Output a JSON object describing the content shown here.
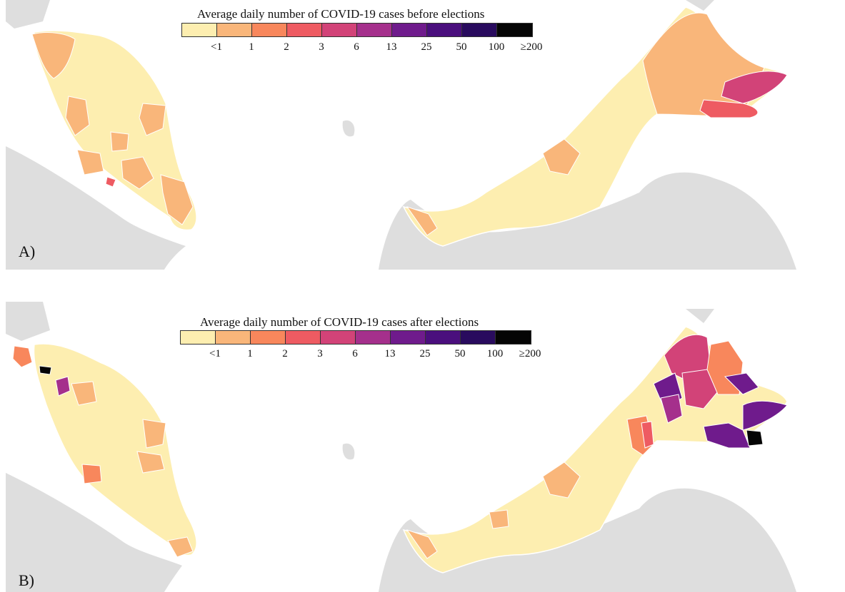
{
  "palette": {
    "lt1": "#fdeeb0",
    "1": "#f9b67a",
    "2": "#f8875c",
    "3": "#ee5b62",
    "6": "#d24378",
    "13": "#a5308c",
    "25": "#6f1b8c",
    "50": "#4a0f7d",
    "100": "#290b5e",
    "ge200": "#050505",
    "background_land": "#dedede",
    "boundary": "#ffffff"
  },
  "panel_a": {
    "label": "A)",
    "legend": {
      "title": "Average daily number of COVID-19 cases before elections",
      "ticks": [
        "<1",
        "1",
        "2",
        "3",
        "6",
        "13",
        "25",
        "50",
        "100",
        "≥200"
      ]
    },
    "dominant_category": "<1",
    "hotspots": [
      {
        "area": "east Sabah",
        "category": "6"
      },
      {
        "area": "southeast Sabah",
        "category": "3"
      },
      {
        "area": "central Selangor",
        "category": "3"
      }
    ]
  },
  "panel_b": {
    "label": "B)",
    "legend": {
      "title": "Average daily number of COVID-19 cases after elections",
      "ticks": [
        "<1",
        "1",
        "2",
        "3",
        "6",
        "13",
        "25",
        "50",
        "100",
        "≥200"
      ]
    },
    "dominant_category": "<1",
    "hotspots": [
      {
        "area": "Kedah coast",
        "category": "≥200"
      },
      {
        "area": "Kedah inland",
        "category": "13"
      },
      {
        "area": "Perlis",
        "category": "2"
      },
      {
        "area": "west Sabah",
        "category": "25"
      },
      {
        "area": "southeast Sabah",
        "category": "25"
      },
      {
        "area": "Tawau",
        "category": "≥200"
      }
    ]
  }
}
